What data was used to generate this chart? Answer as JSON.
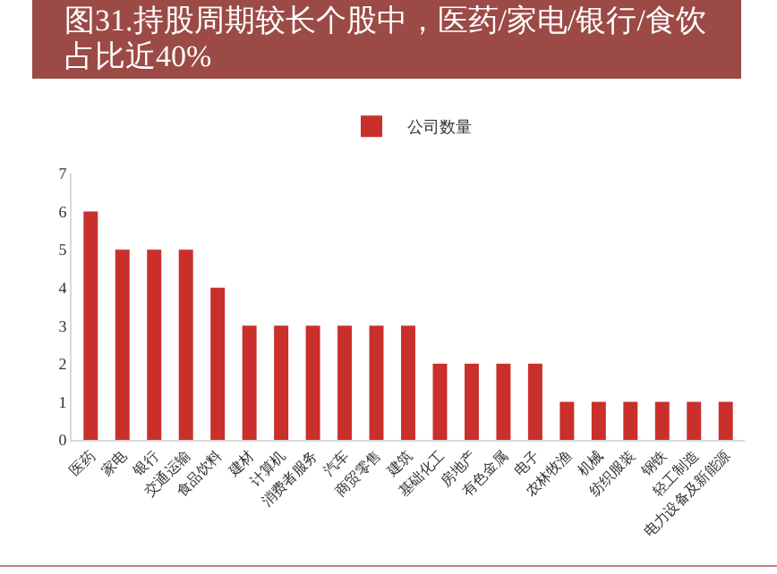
{
  "chart_data": {
    "type": "bar",
    "title": "图31.持股周期较长个股中，医药/家电/银行/食饮占比近40%",
    "categories": [
      "医药",
      "家电",
      "银行",
      "交通运输",
      "食品饮料",
      "建材",
      "计算机",
      "消费者服务",
      "汽车",
      "商贸零售",
      "建筑",
      "基础化工",
      "房地产",
      "有色金属",
      "电子",
      "农林牧渔",
      "机械",
      "纺织服装",
      "钢铁",
      "轻工制造",
      "电力设备及新能源"
    ],
    "series": [
      {
        "name": "公司数量",
        "color": "#c9302c",
        "values": [
          6,
          5,
          5,
          5,
          4,
          3,
          3,
          3,
          3,
          3,
          3,
          2,
          2,
          2,
          2,
          1,
          1,
          1,
          1,
          1,
          1
        ]
      }
    ],
    "ylim": [
      0,
      7
    ],
    "yticks": [
      0,
      1,
      2,
      3,
      4,
      5,
      6,
      7
    ],
    "grid": false,
    "legend": "top"
  }
}
